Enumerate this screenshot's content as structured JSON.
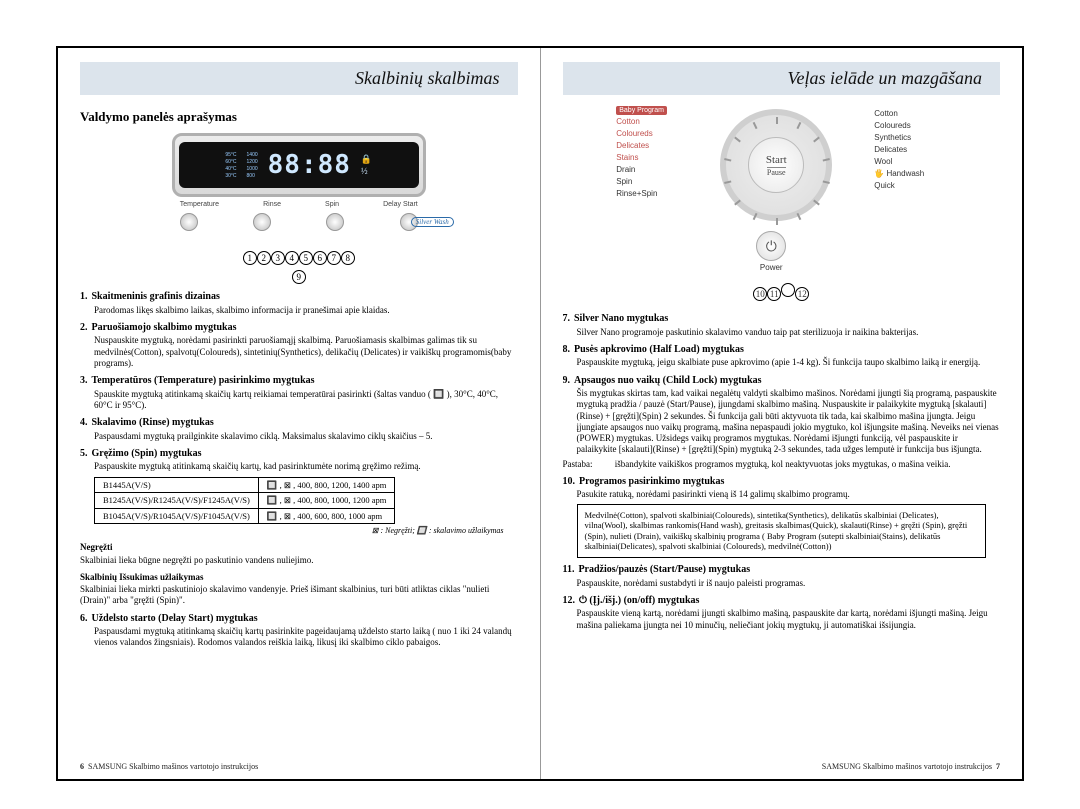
{
  "left": {
    "headline": "Skalbinių skalbimas",
    "subtitle": "Valdymo panelės aprašymas",
    "panel": {
      "lcd_segments": "88:88",
      "lcd_left_lines": [
        "95°C",
        "60°C",
        "40°C",
        "30°C"
      ],
      "lcd_mid_lines": [
        "1400",
        "1200",
        "1000",
        "800"
      ],
      "button_labels": [
        "Temperature",
        "Rinse",
        "Spin",
        "Delay Start"
      ],
      "badge": "Silver Wash"
    },
    "items": [
      {
        "num": "1.",
        "title": "Skaitmeninis grafinis dizainas",
        "desc": "Parodomas likęs skalbimo laikas, skalbimo informacija ir pranešimai apie klaidas."
      },
      {
        "num": "2.",
        "title": "Paruošiamojo skalbimo mygtukas",
        "desc": "Nuspauskite mygtuką, norėdami pasirinkti paruošiamąjį skalbimą. Paruošiamasis skalbimas galimas tik su medvilnės(Cotton), spalvotų(Coloureds), sintetinių(Synthetics), delikačių (Delicates) ir vaikiškų programomis(baby programs)."
      },
      {
        "num": "3.",
        "title": "Temperatūros (Temperature) pasirinkimo mygtukas",
        "desc": "Spauskite mygtuką atitinkamą skaičių kartų reikiamai temperatūrai pasirinkti (šaltas vanduo ( 🔲 ), 30°C, 40°C, 60°C ir 95°C)."
      },
      {
        "num": "4.",
        "title": "Skalavimo (Rinse) mygtukas",
        "desc": "Paspausdami mygtuką prailginkite skalavimo ciklą. Maksimalus skalavimo ciklų skaičius – 5."
      },
      {
        "num": "5.",
        "title": "Gręžimo (Spin) mygtukas",
        "desc": "Paspauskite mygtuką atitinkamą skaičių kartų, kad pasirinktumėte norimą gręžimo režimą."
      },
      {
        "num": "6.",
        "title": "Uždelsto starto (Delay Start) mygtukas",
        "desc": "Paspausdami mygtuką atitinkamą skaičių kartų pasirinkite pageidaujamą uždelsto starto laiką ( nuo 1 iki 24 valandų vienos valandos žingsniais). Rodomos valandos reiškia laiką, likusį iki skalbimo ciklo pabaigos."
      }
    ],
    "spin_table": {
      "rows": [
        [
          "B1445A(V/S)",
          "🔲 , ⊠ , 400, 800, 1200, 1400 apm"
        ],
        [
          "B1245A(V/S)/R1245A(V/S)/F1245A(V/S)",
          "🔲 , ⊠ , 400, 800, 1000, 1200 apm"
        ],
        [
          "B1045A(V/S)/R1045A(V/S)/F1045A(V/S)",
          "🔲 , ⊠ , 400, 600, 800, 1000 apm"
        ]
      ],
      "note": "⊠ : Negręžti; 🔲 : skalavimo užlaikymas"
    },
    "extras": [
      {
        "h": "Negręžti",
        "t": "Skalbiniai lieka būgne negręžti po paskutinio vandens nuliejimo."
      },
      {
        "h": "Skalbinių Išsukimas užlaikymas",
        "t": "Skalbiniai lieka mirkti paskutiniojo skalavimo vandenyje. Prieš išimant skalbinius, turi būti atliktas ciklas \"nulieti (Drain)\" arba \"gręžti (Spin)\"."
      }
    ],
    "footer_page": "6",
    "footer_text": "SAMSUNG Skalbimo mašinos vartotojo instrukcijos"
  },
  "right": {
    "headline": "Veļas ielāde un mazgāšana",
    "dial": {
      "baby_hdr": "Baby Program",
      "left_list": [
        "Cotton",
        "Coloureds",
        "Delicates",
        "Stains",
        "Drain",
        "Spin",
        "Rinse+Spin"
      ],
      "right_list": [
        "Cotton",
        "Coloureds",
        "Synthetics",
        "Delicates",
        "Wool",
        "Handwash",
        "Quick"
      ],
      "start": "Start",
      "pause": "Pause",
      "power": "Power"
    },
    "items": [
      {
        "num": "7.",
        "title": "Silver Nano mygtukas",
        "desc": "Silver Nano programoje paskutinio skalavimo vanduo taip pat sterilizuoja ir naikina bakterijas."
      },
      {
        "num": "8.",
        "title": "Pusės apkrovimo (Half Load) mygtukas",
        "desc": "Paspauskite mygtuką, jeigu skalbiate puse apkrovimo (apie 1-4 kg). Ši funkcija taupo skalbimo laiką ir energiją."
      },
      {
        "num": "9.",
        "title": "Apsaugos nuo vaikų (Child Lock) mygtukas",
        "desc": "Šis mygtukas skirtas tam, kad vaikai negalėtų valdyti skalbimo mašinos. Norėdami įjungti šią programą, paspauskite mygtuką pradžia / pauzė (Start/Pause), įjungdami skalbimo mašiną. Nuspauskite ir palaikykite mygtuką [skalauti](Rinse) + [gręžti](Spin) 2 sekundes. Ši funkcija gali būti aktyvuota tik tada, kai skalbimo mašina įjungta. Jeigu įjungiate apsaugos nuo vaikų programą, mašina nepaspaudi jokio mygtuko, kol išjungsite mašiną. Neveiks nei vienas (POWER) mygtukas. Užsidegs vaikų programos mygtukas. Norėdami išjungti funkciją, vėl paspauskite ir palaikykite [skalauti](Rinse) + [gręžti](Spin) mygtuką 2-3 sekundes, tada užges lemputė ir funkcija bus išjungta."
      },
      {
        "num": "10.",
        "title": "Programos pasirinkimo mygtukas",
        "desc": "Pasukite ratuką, norėdami pasirinkti vieną iš 14 galimų skalbimo programų."
      },
      {
        "num": "11.",
        "title": "Pradžios/pauzės (Start/Pause) mygtukas",
        "desc": "Paspauskite, norėdami sustabdyti ir iš naujo paleisti programas."
      },
      {
        "num": "12.",
        "title": "⏻ (Įj./išj.) (on/off) mygtukas",
        "desc": "Paspauskite vieną kartą, norėdami įjungti skalbimo mašiną, paspauskite dar kartą, norėdami išjungti mašiną. Jeigu mašina paliekama įjungta nei 10 minučių, neliečiant jokių mygtukų, ji automatiškai išsijungia."
      }
    ],
    "note9": {
      "label": "Pastaba:",
      "text": "išbandykite vaikiškos programos mygtuką, kol neaktyvuotas joks mygtukas, o mašina veikia."
    },
    "infobox": "Medvilnė(Cotton), spalvoti skalbiniai(Coloureds), sintetika(Synthetics), delikatūs skalbiniai (Delicates), vilna(Wool), skalbimas rankomis(Hand wash), greitasis skalbimas(Quick), skalauti(Rinse) + gręžti (Spin), gręžti (Spin), nulieti (Drain), vaikiškų skalbinių programa ( Baby Program (sutepti skalbiniai(Stains), delikatūs skalbiniai(Delicates), spalvoti skalbiniai (Coloureds), medvilnė(Cotton))",
    "footer_page": "7",
    "footer_text": "SAMSUNG Skalbimo mašinos vartotojo instrukcijos"
  },
  "colors": {
    "header_bg": "#dce4ec",
    "accent_red": "#c0504d",
    "accent_blue": "#2a6aa8"
  }
}
